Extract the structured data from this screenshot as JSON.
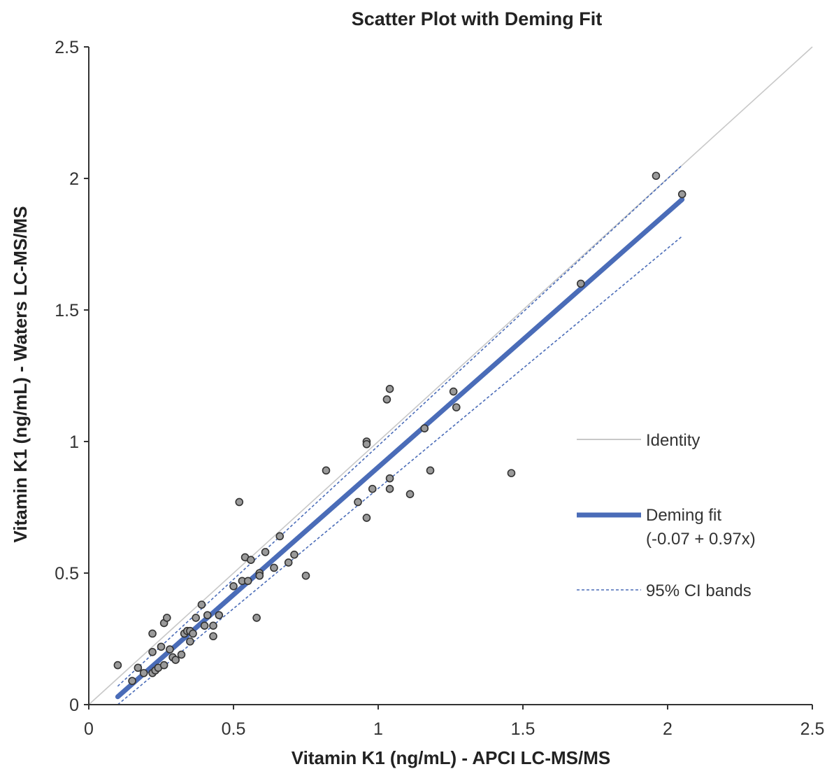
{
  "chart_data": {
    "type": "scatter",
    "title": "Scatter Plot with Deming Fit",
    "xlabel": "Vitamin K1 (ng/mL) - APCI LC-MS/MS",
    "ylabel": "Vitamin K1 (ng/mL) - Waters LC-MS/MS",
    "xlim": [
      0,
      2.5
    ],
    "ylim": [
      0,
      2.5
    ],
    "x_ticks": [
      "0",
      "0.5",
      "1",
      "1.5",
      "2",
      "2.5"
    ],
    "y_ticks": [
      "0",
      "0.5",
      "1",
      "1.5",
      "2",
      "2.5"
    ],
    "grid": false,
    "legend_position": "right",
    "colors": {
      "identity": "#c8c8c8",
      "fit": "#4a6cb8",
      "ci": "#4a6cb8",
      "point_fill": "#9a9a9a",
      "point_stroke": "#333333",
      "axis": "#333333"
    },
    "points": [
      [
        0.1,
        0.15
      ],
      [
        0.15,
        0.09
      ],
      [
        0.17,
        0.14
      ],
      [
        0.19,
        0.12
      ],
      [
        0.22,
        0.12
      ],
      [
        0.22,
        0.2
      ],
      [
        0.22,
        0.27
      ],
      [
        0.23,
        0.13
      ],
      [
        0.24,
        0.14
      ],
      [
        0.25,
        0.22
      ],
      [
        0.26,
        0.31
      ],
      [
        0.26,
        0.15
      ],
      [
        0.27,
        0.33
      ],
      [
        0.28,
        0.21
      ],
      [
        0.29,
        0.18
      ],
      [
        0.3,
        0.17
      ],
      [
        0.32,
        0.19
      ],
      [
        0.33,
        0.27
      ],
      [
        0.34,
        0.28
      ],
      [
        0.35,
        0.28
      ],
      [
        0.35,
        0.24
      ],
      [
        0.36,
        0.27
      ],
      [
        0.37,
        0.33
      ],
      [
        0.39,
        0.38
      ],
      [
        0.4,
        0.3
      ],
      [
        0.41,
        0.34
      ],
      [
        0.43,
        0.26
      ],
      [
        0.43,
        0.3
      ],
      [
        0.45,
        0.34
      ],
      [
        0.5,
        0.45
      ],
      [
        0.52,
        0.77
      ],
      [
        0.53,
        0.47
      ],
      [
        0.54,
        0.56
      ],
      [
        0.55,
        0.47
      ],
      [
        0.56,
        0.55
      ],
      [
        0.58,
        0.33
      ],
      [
        0.59,
        0.5
      ],
      [
        0.59,
        0.49
      ],
      [
        0.61,
        0.58
      ],
      [
        0.64,
        0.52
      ],
      [
        0.66,
        0.64
      ],
      [
        0.69,
        0.54
      ],
      [
        0.71,
        0.57
      ],
      [
        0.75,
        0.49
      ],
      [
        0.82,
        0.89
      ],
      [
        0.93,
        0.77
      ],
      [
        0.96,
        1.0
      ],
      [
        0.96,
        0.99
      ],
      [
        0.96,
        0.71
      ],
      [
        0.98,
        0.82
      ],
      [
        1.03,
        1.16
      ],
      [
        1.04,
        1.2
      ],
      [
        1.04,
        0.86
      ],
      [
        1.04,
        0.82
      ],
      [
        1.11,
        0.8
      ],
      [
        1.16,
        1.05
      ],
      [
        1.18,
        0.89
      ],
      [
        1.26,
        1.19
      ],
      [
        1.27,
        1.13
      ],
      [
        1.46,
        0.88
      ],
      [
        1.7,
        1.6
      ],
      [
        1.96,
        2.01
      ],
      [
        2.05,
        1.94
      ]
    ],
    "series": [
      {
        "name": "Identity",
        "kind": "line",
        "x": [
          0,
          2.5
        ],
        "y": [
          0,
          2.5
        ]
      },
      {
        "name": "Deming fit",
        "kind": "line",
        "x": [
          0.1,
          2.05
        ],
        "y": [
          0.03,
          1.92
        ]
      },
      {
        "name": "95% CI bands",
        "kind": "band",
        "x": [
          0.1,
          2.05
        ],
        "lower": [
          0.0,
          1.78
        ],
        "upper": [
          0.07,
          2.05
        ]
      }
    ],
    "legend": [
      {
        "label": "Identity",
        "style": "identity"
      },
      {
        "label": "Deming fit",
        "sublabel": "(-0.07 + 0.97x)",
        "style": "fit"
      },
      {
        "label": "95% CI bands",
        "style": "ci"
      }
    ]
  }
}
